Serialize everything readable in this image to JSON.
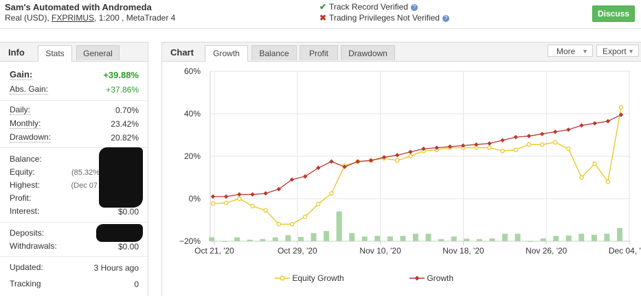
{
  "header": {
    "title": "Sam's Automated with Andromeda",
    "account_type": "Real (USD),",
    "broker": "FXPRIMUS",
    "leverage_platform": ", 1:200 , MetaTrader 4",
    "verifications": [
      {
        "mark": "✔",
        "color": "#2a9d2a",
        "label": "Track Record Verified",
        "info": "?"
      },
      {
        "mark": "✖",
        "color": "#c0392b",
        "label": "Trading Privileges Not Verified",
        "info": "?"
      }
    ],
    "discuss_label": "Discuss"
  },
  "info_panel": {
    "title": "Info",
    "tabs": [
      "Stats",
      "General"
    ],
    "active_tab": "Stats",
    "gain": {
      "label": "Gain:",
      "value": "+39.88%"
    },
    "abs_gain": {
      "label": "Abs. Gain:",
      "value": "+37.86%"
    },
    "daily": {
      "label": "Daily:",
      "value": "0.70%"
    },
    "monthly": {
      "label": "Monthly:",
      "value": "23.42%"
    },
    "drawdown": {
      "label": "Drawdown:",
      "value": "20.82%"
    },
    "balance": {
      "label": "Balance:",
      "value": ""
    },
    "equity": {
      "label": "Equity:",
      "value": "(85.32%"
    },
    "highest": {
      "label": "Highest:",
      "value": "(Dec 07"
    },
    "profit": {
      "label": "Profit:",
      "value": ""
    },
    "interest": {
      "label": "Interest:",
      "value": "$0.00"
    },
    "deposits": {
      "label": "Deposits:",
      "value": ""
    },
    "withdrawals": {
      "label": "Withdrawals:",
      "value": "$0.00"
    },
    "updated": {
      "label": "Updated:",
      "value": "3 Hours ago"
    },
    "tracking": {
      "label": "Tracking",
      "value": "0"
    }
  },
  "chart_panel": {
    "title": "Chart",
    "tabs": [
      "Growth",
      "Balance",
      "Profit",
      "Drawdown"
    ],
    "active_tab": "Growth",
    "more_label": "More",
    "export_label": "Export"
  },
  "chart_data": {
    "type": "line",
    "x_tick_labels": [
      "Oct 21, '20",
      "Oct 29, '20",
      "Nov 10, '20",
      "Nov 18, '20",
      "Nov 26, '20",
      "Dec 04, '20"
    ],
    "y_tick_labels": [
      "60%",
      "40%",
      "20%",
      "0%",
      "−20%"
    ],
    "ylim": [
      -20,
      60
    ],
    "grid": true,
    "legend_position": "bottom",
    "colors": {
      "equity": "#e6c619",
      "growth": "#b8392f",
      "bars": "#a9d5a5"
    },
    "series": [
      {
        "name": "Equity Growth",
        "values": [
          -2.3,
          -2.0,
          0.0,
          -3.5,
          -5.5,
          -12.0,
          -12.0,
          -8.5,
          -2.5,
          2.5,
          15.5,
          17.5,
          18.0,
          19.0,
          18.0,
          20.0,
          22.5,
          23.0,
          24.0,
          24.0,
          24.0,
          24.0,
          22.5,
          23.0,
          25.5,
          25.5,
          26.5,
          23.5,
          10.0,
          16.5,
          8.0,
          43.0
        ]
      },
      {
        "name": "Growth",
        "values": [
          1.0,
          1.0,
          2.0,
          2.0,
          2.5,
          4.5,
          9.0,
          10.5,
          14.5,
          17.5,
          15.0,
          17.5,
          18.0,
          19.5,
          20.5,
          22.0,
          23.5,
          24.0,
          24.5,
          25.0,
          25.5,
          26.0,
          27.5,
          29.0,
          29.5,
          30.5,
          31.5,
          32.5,
          34.5,
          35.5,
          36.5,
          39.5
        ]
      },
      {
        "name": "",
        "type": "bar",
        "values": [
          -18.2,
          -20,
          -18.2,
          -19.3,
          -19.0,
          -18.2,
          -17.2,
          -18.0,
          -16.2,
          -15.2,
          -6.0,
          -16.2,
          -17.8,
          -17.5,
          -17.8,
          -17.5,
          -16.5,
          -16.5,
          -19.0,
          -17.8,
          -18.8,
          -19.0,
          -18.7,
          -16.5,
          -16.5,
          -20,
          -18.7,
          -17.5,
          -17.3,
          -16.5,
          -17.0,
          -16.5,
          -13.8
        ]
      }
    ]
  }
}
